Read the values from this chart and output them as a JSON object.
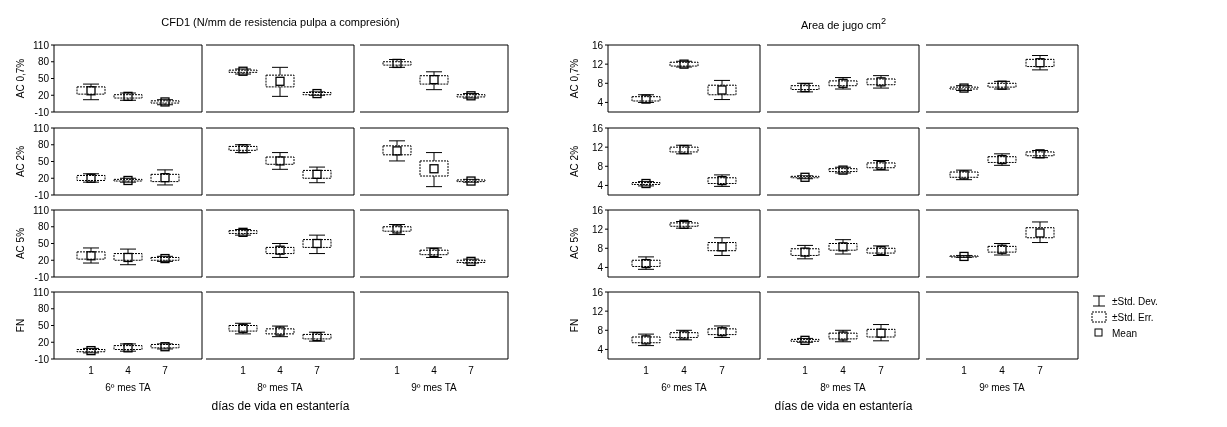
{
  "chart_data": [
    {
      "type": "box",
      "categories": [
        "1",
        "4",
        "7"
      ],
      "ylabel": "AC 0,7%",
      "ylim": [
        -10,
        110
      ],
      "yticks": [
        -10,
        20,
        50,
        80,
        110
      ],
      "tick_labels": "y",
      "boxes": [
        {
          "low": 12,
          "q1": 22,
          "mean": 28,
          "q3": 35,
          "high": 40
        },
        {
          "low": 11,
          "q1": 15,
          "mean": 18,
          "q3": 21,
          "high": 24
        },
        {
          "low": 3,
          "q1": 6,
          "mean": 8,
          "q3": 10,
          "high": 12
        }
      ]
    },
    {
      "type": "box",
      "title": "CFD1 (N/mm de resistencia pulpa a compresión)",
      "categories": [
        "1",
        "4",
        "7"
      ],
      "ylim": [
        -10,
        110
      ],
      "yticks": [
        -10,
        20,
        50,
        80,
        110
      ],
      "tick_labels": false,
      "boxes": [
        {
          "low": 58,
          "q1": 61,
          "mean": 63,
          "q3": 65,
          "high": 67
        },
        {
          "low": 18,
          "q1": 35,
          "mean": 45,
          "q3": 56,
          "high": 70
        },
        {
          "low": 20,
          "q1": 21,
          "mean": 23,
          "q3": 25,
          "high": 26
        }
      ]
    },
    {
      "type": "box",
      "categories": [
        "1",
        "4",
        "7"
      ],
      "ylim": [
        -10,
        110
      ],
      "yticks": [
        -10,
        20,
        50,
        80,
        110
      ],
      "tick_labels": false,
      "boxes": [
        {
          "low": 70,
          "q1": 74,
          "mean": 77,
          "q3": 80,
          "high": 84
        },
        {
          "low": 30,
          "q1": 40,
          "mean": 48,
          "q3": 55,
          "high": 62
        },
        {
          "low": 15,
          "q1": 17,
          "mean": 19,
          "q3": 21,
          "high": 23
        }
      ]
    },
    {
      "type": "box",
      "categories": [
        "1",
        "4",
        "7"
      ],
      "ylabel": "AC 2%",
      "ylim": [
        -10,
        110
      ],
      "yticks": [
        -10,
        20,
        50,
        80,
        110
      ],
      "tick_labels": "y",
      "boxes": [
        {
          "low": 13,
          "q1": 16,
          "mean": 20,
          "q3": 25,
          "high": 28
        },
        {
          "low": 13,
          "q1": 15,
          "mean": 16,
          "q3": 18,
          "high": 20
        },
        {
          "low": 8,
          "q1": 14,
          "mean": 21,
          "q3": 27,
          "high": 35
        }
      ]
    },
    {
      "type": "box",
      "categories": [
        "1",
        "4",
        "7"
      ],
      "ylim": [
        -10,
        110
      ],
      "yticks": [
        -10,
        20,
        50,
        80,
        110
      ],
      "tick_labels": false,
      "boxes": [
        {
          "low": 66,
          "q1": 70,
          "mean": 73,
          "q3": 77,
          "high": 80
        },
        {
          "low": 36,
          "q1": 45,
          "mean": 51,
          "q3": 58,
          "high": 66
        },
        {
          "low": 12,
          "q1": 20,
          "mean": 27,
          "q3": 34,
          "high": 40
        }
      ]
    },
    {
      "type": "box",
      "categories": [
        "1",
        "4",
        "7"
      ],
      "ylim": [
        -10,
        110
      ],
      "yticks": [
        -10,
        20,
        50,
        80,
        110
      ],
      "tick_labels": false,
      "boxes": [
        {
          "low": 51,
          "q1": 62,
          "mean": 69,
          "q3": 78,
          "high": 87
        },
        {
          "low": 5,
          "q1": 24,
          "mean": 37,
          "q3": 51,
          "high": 66
        },
        {
          "low": 13,
          "q1": 14,
          "mean": 15,
          "q3": 17,
          "high": 18
        }
      ]
    },
    {
      "type": "box",
      "categories": [
        "1",
        "4",
        "7"
      ],
      "ylabel": "AC 5%",
      "ylim": [
        -10,
        110
      ],
      "yticks": [
        -10,
        20,
        50,
        80,
        110
      ],
      "tick_labels": "y",
      "boxes": [
        {
          "low": 15,
          "q1": 22,
          "mean": 28,
          "q3": 35,
          "high": 42
        },
        {
          "low": 12,
          "q1": 20,
          "mean": 25,
          "q3": 32,
          "high": 40
        },
        {
          "low": 18,
          "q1": 20,
          "mean": 23,
          "q3": 25,
          "high": 27
        }
      ]
    },
    {
      "type": "box",
      "categories": [
        "1",
        "4",
        "7"
      ],
      "ylim": [
        -10,
        110
      ],
      "yticks": [
        -10,
        20,
        50,
        80,
        110
      ],
      "tick_labels": false,
      "boxes": [
        {
          "low": 65,
          "q1": 68,
          "mean": 70,
          "q3": 73,
          "high": 75
        },
        {
          "low": 25,
          "q1": 32,
          "mean": 38,
          "q3": 43,
          "high": 50
        },
        {
          "low": 32,
          "q1": 43,
          "mean": 50,
          "q3": 57,
          "high": 65
        }
      ]
    },
    {
      "type": "box",
      "categories": [
        "1",
        "4",
        "7"
      ],
      "ylim": [
        -10,
        110
      ],
      "yticks": [
        -10,
        20,
        50,
        80,
        110
      ],
      "tick_labels": false,
      "boxes": [
        {
          "low": 66,
          "q1": 72,
          "mean": 76,
          "q3": 80,
          "high": 84
        },
        {
          "low": 25,
          "q1": 30,
          "mean": 34,
          "q3": 38,
          "high": 42
        },
        {
          "low": 15,
          "q1": 16,
          "mean": 18,
          "q3": 20,
          "high": 22
        }
      ]
    },
    {
      "type": "box",
      "categories": [
        "1",
        "4",
        "7"
      ],
      "ylabel": "FN",
      "xlabel": "6º mes TA",
      "ylim": [
        -10,
        110
      ],
      "yticks": [
        -10,
        20,
        50,
        80,
        110
      ],
      "boxes": [
        {
          "low": 1,
          "q1": 3,
          "mean": 5,
          "q3": 7,
          "high": 9
        },
        {
          "low": 4,
          "q1": 7,
          "mean": 10,
          "q3": 14,
          "high": 17
        },
        {
          "low": 8,
          "q1": 10,
          "mean": 12,
          "q3": 16,
          "high": 17
        }
      ]
    },
    {
      "type": "box",
      "categories": [
        "1",
        "4",
        "7"
      ],
      "xlabel": "8º mes TA",
      "annotations": [
        "días de vida en estantería"
      ],
      "ylim": [
        -10,
        110
      ],
      "yticks": [
        -10,
        20,
        50,
        80,
        110
      ],
      "tick_labels": "x",
      "boxes": [
        {
          "low": 35,
          "q1": 40,
          "mean": 45,
          "q3": 50,
          "high": 54
        },
        {
          "low": 30,
          "q1": 35,
          "mean": 40,
          "q3": 44,
          "high": 49
        },
        {
          "low": 22,
          "q1": 26,
          "mean": 30,
          "q3": 34,
          "high": 38
        }
      ]
    },
    {
      "type": "box",
      "categories": [
        "1",
        "4",
        "7"
      ],
      "xlabel": "9º mes TA",
      "ylim": [
        -10,
        110
      ],
      "yticks": [
        -10,
        20,
        50,
        80,
        110
      ],
      "tick_labels": "x",
      "boxes": [
        null,
        null,
        null
      ]
    },
    {
      "type": "box",
      "categories": [
        "1",
        "4",
        "7"
      ],
      "ylabel": "AC 0,7%",
      "ylim": [
        2,
        16
      ],
      "yticks": [
        4,
        8,
        12,
        16
      ],
      "tick_labels": "y",
      "boxes": [
        {
          "low": 4.0,
          "q1": 4.3,
          "mean": 4.7,
          "q3": 5.2,
          "high": 5.6
        },
        {
          "low": 11.4,
          "q1": 11.6,
          "mean": 12.0,
          "q3": 12.4,
          "high": 12.6
        },
        {
          "low": 4.6,
          "q1": 5.6,
          "mean": 6.6,
          "q3": 7.6,
          "high": 8.6
        }
      ]
    },
    {
      "type": "box",
      "title": "Area de jugo cm$^{2}$",
      "categories": [
        "1",
        "4",
        "7"
      ],
      "ylim": [
        2,
        16
      ],
      "yticks": [
        4,
        8,
        12,
        16
      ],
      "tick_labels": false,
      "boxes": [
        {
          "low": 6.2,
          "q1": 6.7,
          "mean": 7.1,
          "q3": 7.5,
          "high": 8.0
        },
        {
          "low": 6.8,
          "q1": 7.5,
          "mean": 8.0,
          "q3": 8.5,
          "high": 9.2
        },
        {
          "low": 7.0,
          "q1": 7.7,
          "mean": 8.3,
          "q3": 8.9,
          "high": 9.6
        }
      ]
    },
    {
      "type": "box",
      "categories": [
        "1",
        "4",
        "7"
      ],
      "ylim": [
        2,
        16
      ],
      "yticks": [
        4,
        8,
        12,
        16
      ],
      "tick_labels": false,
      "boxes": [
        {
          "low": 6.5,
          "q1": 6.8,
          "mean": 7.0,
          "q3": 7.2,
          "high": 7.5
        },
        {
          "low": 6.8,
          "q1": 7.2,
          "mean": 7.6,
          "q3": 8.0,
          "high": 8.4
        },
        {
          "low": 10.8,
          "q1": 11.5,
          "mean": 12.3,
          "q3": 13.0,
          "high": 13.8
        }
      ]
    },
    {
      "type": "box",
      "categories": [
        "1",
        "4",
        "7"
      ],
      "ylabel": "AC 2%",
      "ylim": [
        2,
        16
      ],
      "yticks": [
        4,
        8,
        12,
        16
      ],
      "tick_labels": "y",
      "boxes": [
        {
          "low": 3.9,
          "q1": 4.2,
          "mean": 4.4,
          "q3": 4.6,
          "high": 4.8
        },
        {
          "low": 10.6,
          "q1": 11.0,
          "mean": 11.5,
          "q3": 12.0,
          "high": 12.4
        },
        {
          "low": 3.8,
          "q1": 4.4,
          "mean": 5.0,
          "q3": 5.6,
          "high": 6.2
        }
      ]
    },
    {
      "type": "box",
      "categories": [
        "1",
        "4",
        "7"
      ],
      "ylim": [
        2,
        16
      ],
      "yticks": [
        4,
        8,
        12,
        16
      ],
      "tick_labels": false,
      "boxes": [
        {
          "low": 5.4,
          "q1": 5.6,
          "mean": 5.7,
          "q3": 5.9,
          "high": 6.0
        },
        {
          "low": 6.6,
          "q1": 6.9,
          "mean": 7.2,
          "q3": 7.5,
          "high": 7.8
        },
        {
          "low": 7.2,
          "q1": 7.7,
          "mean": 8.2,
          "q3": 8.7,
          "high": 9.2
        }
      ]
    },
    {
      "type": "box",
      "categories": [
        "1",
        "4",
        "7"
      ],
      "ylim": [
        2,
        16
      ],
      "yticks": [
        4,
        8,
        12,
        16
      ],
      "tick_labels": false,
      "boxes": [
        {
          "low": 5.2,
          "q1": 5.7,
          "mean": 6.2,
          "q3": 6.8,
          "high": 7.2
        },
        {
          "low": 8.2,
          "q1": 8.8,
          "mean": 9.4,
          "q3": 10.0,
          "high": 10.6
        },
        {
          "low": 9.8,
          "q1": 10.2,
          "mean": 10.6,
          "q3": 11.0,
          "high": 11.3
        }
      ]
    },
    {
      "type": "box",
      "categories": [
        "1",
        "4",
        "7"
      ],
      "ylabel": "AC 5%",
      "ylim": [
        2,
        16
      ],
      "yticks": [
        4,
        8,
        12,
        16
      ],
      "tick_labels": "y",
      "boxes": [
        {
          "low": 3.6,
          "q1": 4.2,
          "mean": 4.8,
          "q3": 5.5,
          "high": 6.2
        },
        {
          "low": 12.2,
          "q1": 12.6,
          "mean": 13.0,
          "q3": 13.3,
          "high": 13.6
        },
        {
          "low": 6.5,
          "q1": 7.5,
          "mean": 8.3,
          "q3": 9.2,
          "high": 10.2
        }
      ]
    },
    {
      "type": "box",
      "categories": [
        "1",
        "4",
        "7"
      ],
      "ylim": [
        2,
        16
      ],
      "yticks": [
        4,
        8,
        12,
        16
      ],
      "tick_labels": false,
      "boxes": [
        {
          "low": 5.8,
          "q1": 6.5,
          "mean": 7.2,
          "q3": 7.9,
          "high": 8.6
        },
        {
          "low": 6.8,
          "q1": 7.6,
          "mean": 8.3,
          "q3": 9.0,
          "high": 9.8
        },
        {
          "low": 6.5,
          "q1": 7.0,
          "mean": 7.5,
          "q3": 8.0,
          "high": 8.5
        }
      ]
    },
    {
      "type": "box",
      "categories": [
        "1",
        "4",
        "7"
      ],
      "ylim": [
        2,
        16
      ],
      "yticks": [
        4,
        8,
        12,
        16
      ],
      "tick_labels": false,
      "boxes": [
        {
          "low": 6.1,
          "q1": 6.2,
          "mean": 6.3,
          "q3": 6.4,
          "high": 6.5
        },
        {
          "low": 6.6,
          "q1": 7.2,
          "mean": 7.8,
          "q3": 8.4,
          "high": 9.0
        },
        {
          "low": 9.2,
          "q1": 10.2,
          "mean": 11.2,
          "q3": 12.3,
          "high": 13.5
        }
      ]
    },
    {
      "type": "box",
      "categories": [
        "1",
        "4",
        "7"
      ],
      "ylabel": "FN",
      "xlabel": "6º mes TA",
      "ylim": [
        2,
        16
      ],
      "yticks": [
        4,
        8,
        12,
        16
      ],
      "boxes": [
        {
          "low": 4.8,
          "q1": 5.4,
          "mean": 6.0,
          "q3": 6.6,
          "high": 7.2
        },
        {
          "low": 6.0,
          "q1": 6.5,
          "mean": 7.0,
          "q3": 7.5,
          "high": 8.0
        },
        {
          "low": 6.5,
          "q1": 7.1,
          "mean": 7.7,
          "q3": 8.3,
          "high": 8.9
        }
      ]
    },
    {
      "type": "box",
      "categories": [
        "1",
        "4",
        "7"
      ],
      "xlabel": "8º mes TA",
      "annotations": [
        "días de vida en estantería"
      ],
      "ylim": [
        2,
        16
      ],
      "yticks": [
        4,
        8,
        12,
        16
      ],
      "tick_labels": "x",
      "boxes": [
        {
          "low": 5.5,
          "q1": 5.7,
          "mean": 5.9,
          "q3": 6.1,
          "high": 6.3
        },
        {
          "low": 5.6,
          "q1": 6.2,
          "mean": 6.8,
          "q3": 7.4,
          "high": 8.0
        },
        {
          "low": 5.8,
          "q1": 6.6,
          "mean": 7.4,
          "q3": 8.2,
          "high": 9.2
        }
      ]
    },
    {
      "type": "box",
      "categories": [
        "1",
        "4",
        "7"
      ],
      "xlabel": "9º mes TA",
      "annotations": [
        "±Std. Dev.",
        "±Std. Err.",
        "Mean"
      ],
      "ylim": [
        2,
        16
      ],
      "yticks": [
        4,
        8,
        12,
        16
      ],
      "tick_labels": "x",
      "boxes": [
        null,
        null,
        null
      ]
    }
  ]
}
